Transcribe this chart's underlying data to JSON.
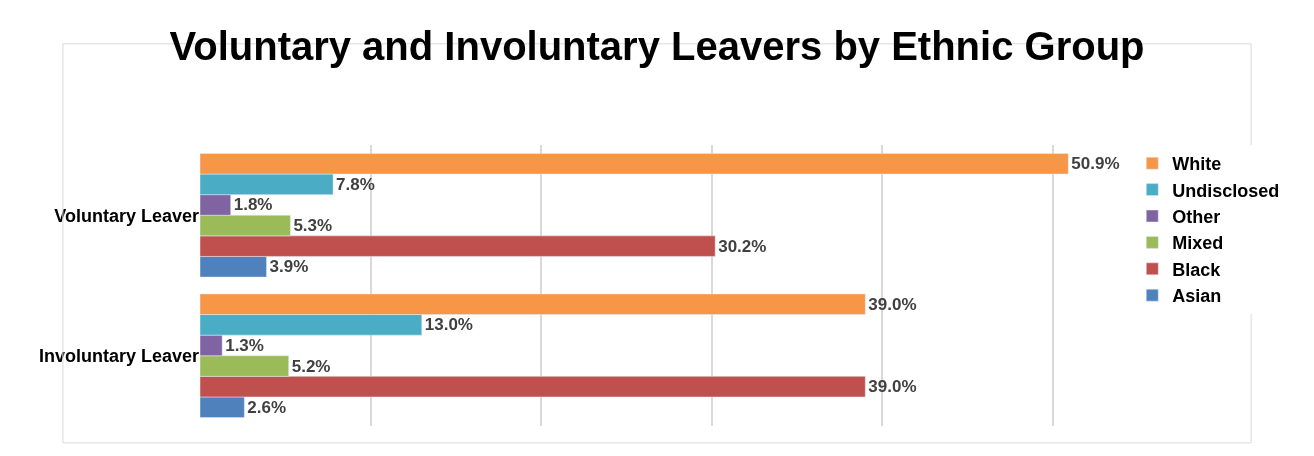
{
  "chart_data": {
    "type": "bar",
    "orientation": "horizontal",
    "title": "Voluntary and Involuntary Leavers by Ethnic Group",
    "categories": [
      "Voluntary Leaver",
      "Involuntary Leaver"
    ],
    "series": [
      {
        "name": "Asian",
        "color": "#4f81bd",
        "values": [
          3.9,
          2.6
        ],
        "value_labels": [
          "3.9%",
          "2.6%"
        ]
      },
      {
        "name": "Black",
        "color": "#c0504d",
        "values": [
          30.2,
          39.0
        ],
        "value_labels": [
          "30.2%",
          "39.0%"
        ]
      },
      {
        "name": "Mixed",
        "color": "#9bbb59",
        "values": [
          5.3,
          5.2
        ],
        "value_labels": [
          "5.3%",
          "5.2%"
        ]
      },
      {
        "name": "Other",
        "color": "#8064a2",
        "values": [
          1.8,
          1.3
        ],
        "value_labels": [
          "1.8%",
          "1.3%"
        ]
      },
      {
        "name": "Undisclosed",
        "color": "#4bacc6",
        "values": [
          7.8,
          13.0
        ],
        "value_labels": [
          "7.8%",
          "13.0%"
        ]
      },
      {
        "name": "White",
        "color": "#f79646",
        "values": [
          50.9,
          39.0
        ],
        "value_labels": [
          "50.9%",
          "39.0%"
        ]
      }
    ],
    "tick_labels": "y",
    "grid": "x",
    "legend": "right"
  }
}
